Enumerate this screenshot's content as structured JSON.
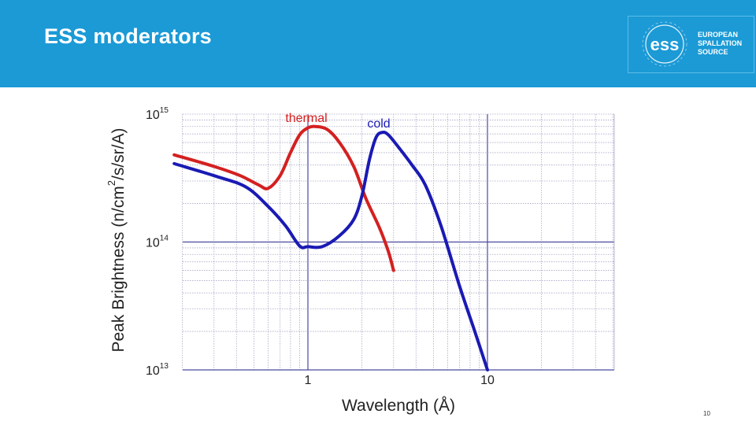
{
  "slide": {
    "title": "ESS moderators",
    "page_number": "10"
  },
  "logo": {
    "brand": "ess",
    "lines": [
      "EUROPEAN",
      "SPALLATION",
      "SOURCE"
    ]
  },
  "colors": {
    "header": "#1b9ad6",
    "thermal": "#d42020",
    "cold": "#1a1ab4",
    "major_grid": "#4a4aa0",
    "minor_grid": "#a8a8c8"
  },
  "chart_data": {
    "type": "line",
    "xlabel": "Wavelength (Å)",
    "ylabel_parts": {
      "pre": "Peak Brightness (n/cm",
      "sup": "2",
      "post": "/s/sr/A)"
    },
    "x_scale": "log",
    "y_scale": "log",
    "xlim": [
      0.18,
      30
    ],
    "ylim": [
      10000000000000.0,
      1000000000000000.0
    ],
    "x_ticks": [
      {
        "value": 1,
        "label": "1"
      },
      {
        "value": 10,
        "label": "10"
      }
    ],
    "y_ticks": [
      {
        "value": 10000000000000.0,
        "base": "10",
        "exp": "13"
      },
      {
        "value": 100000000000000.0,
        "base": "10",
        "exp": "14"
      },
      {
        "value": 1000000000000000.0,
        "base": "10",
        "exp": "15"
      }
    ],
    "grid": true,
    "series": [
      {
        "name": "thermal",
        "x": [
          0.18,
          0.3,
          0.42,
          0.53,
          0.6,
          0.7,
          0.8,
          0.9,
          1.0,
          1.1,
          1.28,
          1.5,
          1.8,
          2.1,
          2.5,
          2.8,
          3.0
        ],
        "y": [
          480000000000000.0,
          390000000000000.0,
          330000000000000.0,
          280000000000000.0,
          263000000000000.0,
          330000000000000.0,
          500000000000000.0,
          690000000000000.0,
          780000000000000.0,
          800000000000000.0,
          760000000000000.0,
          600000000000000.0,
          390000000000000.0,
          220000000000000.0,
          130000000000000.0,
          85000000000000.0,
          60000000000000.0
        ]
      },
      {
        "name": "cold",
        "x": [
          0.18,
          0.3,
          0.45,
          0.6,
          0.75,
          0.9,
          1.0,
          1.2,
          1.5,
          1.8,
          2.0,
          2.2,
          2.4,
          2.6,
          2.8,
          3.2,
          3.8,
          4.5,
          5.5,
          7.0,
          8.5,
          10.0
        ],
        "y": [
          410000000000000.0,
          330000000000000.0,
          270000000000000.0,
          190000000000000.0,
          134000000000000.0,
          93000000000000.0,
          92000000000000.0,
          92000000000000.0,
          112000000000000.0,
          150000000000000.0,
          230000000000000.0,
          440000000000000.0,
          660000000000000.0,
          720000000000000.0,
          690000000000000.0,
          550000000000000.0,
          400000000000000.0,
          280000000000000.0,
          135000000000000.0,
          45000000000000.0,
          20000000000000.0,
          10000000000000.0
        ]
      }
    ],
    "annotations": [
      {
        "text": "thermal",
        "color": "#d42020",
        "near": "thermal-peak"
      },
      {
        "text": "cold",
        "color": "#1a1ab4",
        "near": "cold-peak"
      }
    ]
  }
}
